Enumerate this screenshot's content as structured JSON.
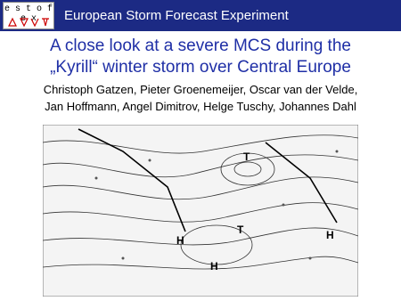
{
  "header": {
    "logo": "e s t o f e x",
    "title": "European Storm Forecast Experiment"
  },
  "slide": {
    "title_lines": [
      "A close look at a severe MCS during the",
      "„Kyrill“ winter storm over Central Europe"
    ],
    "authors": [
      "Christoph Gatzen, Pieter Groenemeijer, Oscar van der Velde,",
      "Jan Hoffmann, Angel Dimitrov, Helge Tuschy, Johannes Dahl"
    ]
  }
}
